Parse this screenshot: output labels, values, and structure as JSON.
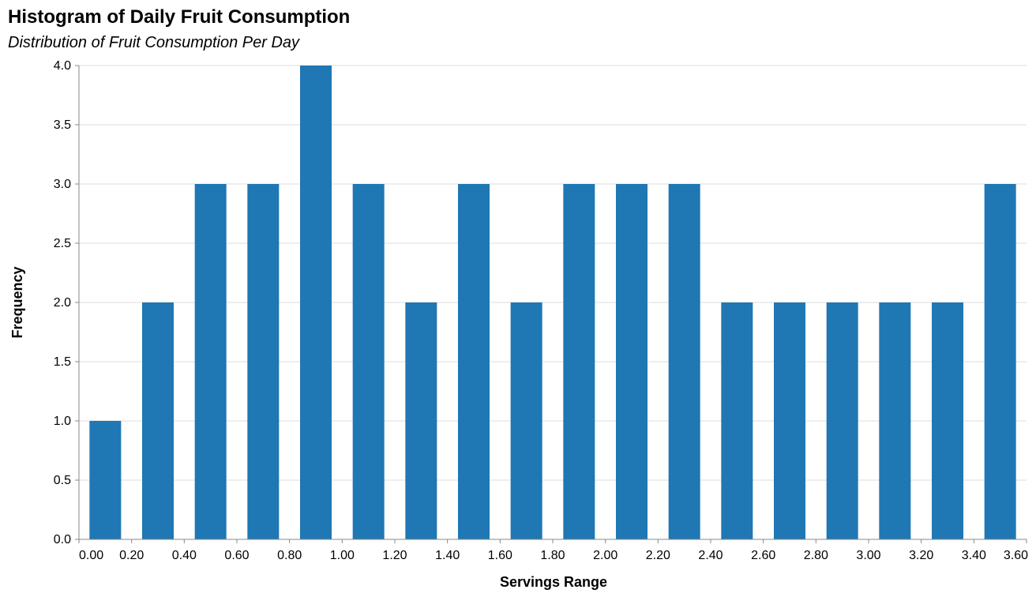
{
  "chart_data": {
    "type": "bar",
    "title": "Histogram of Daily Fruit Consumption",
    "subtitle": "Distribution of Fruit Consumption Per Day",
    "xlabel": "Servings Range",
    "ylabel": "Frequency",
    "bar_color": "#1f77b4",
    "x_domain": [
      0,
      3.6
    ],
    "ylim": [
      0,
      4
    ],
    "grid": true,
    "x_ticks": [
      "0.00",
      "0.20",
      "0.40",
      "0.60",
      "0.80",
      "1.00",
      "1.20",
      "1.40",
      "1.60",
      "1.80",
      "2.00",
      "2.20",
      "2.40",
      "2.60",
      "2.80",
      "3.00",
      "3.20",
      "3.40",
      "3.60"
    ],
    "y_ticks": [
      "0.0",
      "0.5",
      "1.0",
      "1.5",
      "2.0",
      "2.5",
      "3.0",
      "3.5",
      "4.0"
    ],
    "bins": [
      {
        "start": 0.0,
        "end": 0.2,
        "value": 1
      },
      {
        "start": 0.2,
        "end": 0.4,
        "value": 2
      },
      {
        "start": 0.4,
        "end": 0.6,
        "value": 3
      },
      {
        "start": 0.6,
        "end": 0.8,
        "value": 3
      },
      {
        "start": 0.8,
        "end": 1.0,
        "value": 4
      },
      {
        "start": 1.0,
        "end": 1.2,
        "value": 3
      },
      {
        "start": 1.2,
        "end": 1.4,
        "value": 2
      },
      {
        "start": 1.4,
        "end": 1.6,
        "value": 3
      },
      {
        "start": 1.6,
        "end": 1.8,
        "value": 2
      },
      {
        "start": 1.8,
        "end": 2.0,
        "value": 3
      },
      {
        "start": 2.0,
        "end": 2.2,
        "value": 3
      },
      {
        "start": 2.2,
        "end": 2.4,
        "value": 3
      },
      {
        "start": 2.4,
        "end": 2.6,
        "value": 2
      },
      {
        "start": 2.6,
        "end": 2.8,
        "value": 2
      },
      {
        "start": 2.8,
        "end": 3.0,
        "value": 2
      },
      {
        "start": 3.0,
        "end": 3.2,
        "value": 2
      },
      {
        "start": 3.2,
        "end": 3.4,
        "value": 2
      },
      {
        "start": 3.4,
        "end": 3.6,
        "value": 3
      }
    ]
  }
}
